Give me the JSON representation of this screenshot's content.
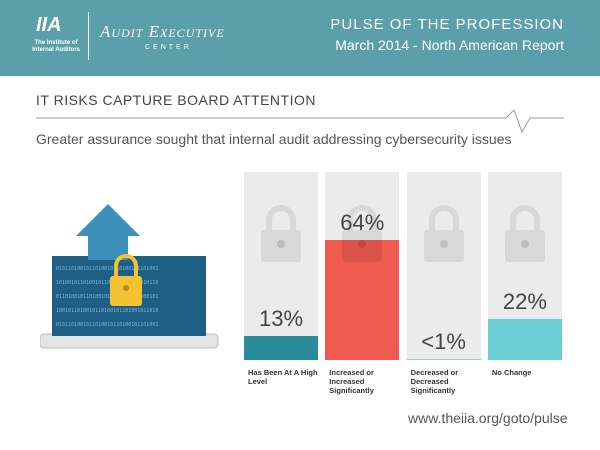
{
  "header": {
    "org": "The Institute of Internal Auditors",
    "org_mark": "IIA",
    "center": "Audit Executive",
    "center_sub": "CENTER",
    "pulse": "PULSE OF THE PROFESSION",
    "report": "March 2014 - North American Report"
  },
  "chart_data": {
    "type": "bar",
    "title": "IT RISKS CAPTURE BOARD ATTENTION",
    "subtitle": "Greater assurance sought that internal audit addressing cybersecurity issues",
    "categories": [
      "Has Been At A High Level",
      "Increased or Increased Significantly",
      "Decreased or Decreased Significantly",
      "No Change"
    ],
    "values": [
      13,
      64,
      0.5,
      22
    ],
    "value_labels": [
      "13%",
      "64%",
      "<1%",
      "22%"
    ],
    "colors": [
      "#2a8b9b",
      "#ef5b50",
      "#8ccbd9",
      "#6ccdd3"
    ],
    "ylim": [
      0,
      100
    ]
  },
  "footer": {
    "url": "www.theiia.org/goto/pulse"
  }
}
